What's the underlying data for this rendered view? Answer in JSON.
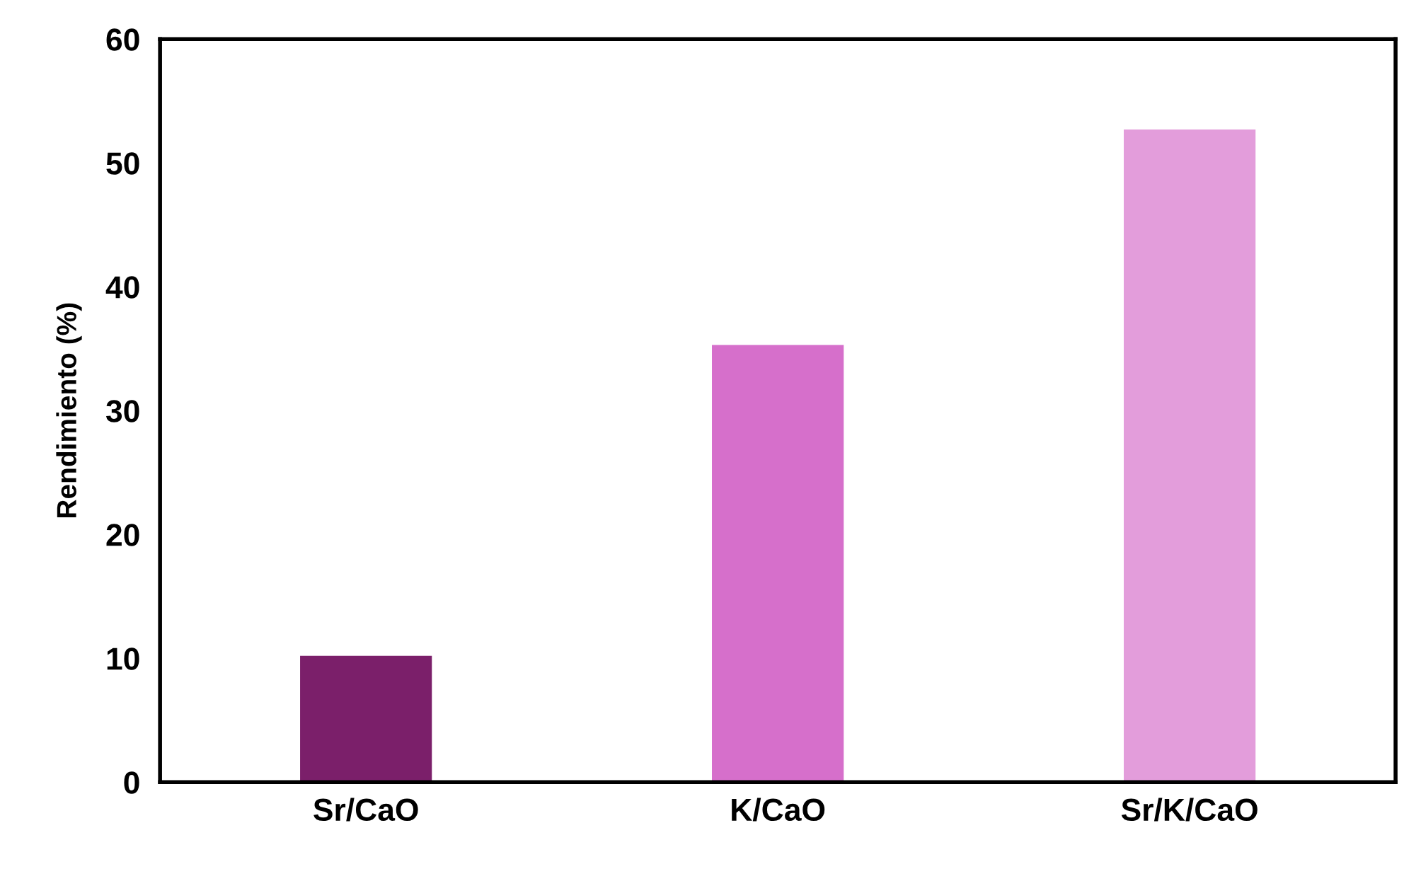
{
  "chart_data": {
    "type": "bar",
    "ylabel": "Rendimiento (%)",
    "categories": [
      "Sr/CaO",
      "K/CaO",
      "Sr/K/CaO"
    ],
    "values": [
      10.2,
      35.3,
      52.7
    ],
    "colors": [
      "#7b1f6a",
      "#d66fcb",
      "#e39ddb"
    ],
    "ylim": [
      0,
      60
    ],
    "yticks": [
      0,
      10,
      20,
      30,
      40,
      50,
      60
    ],
    "grid": false,
    "legend": false
  }
}
